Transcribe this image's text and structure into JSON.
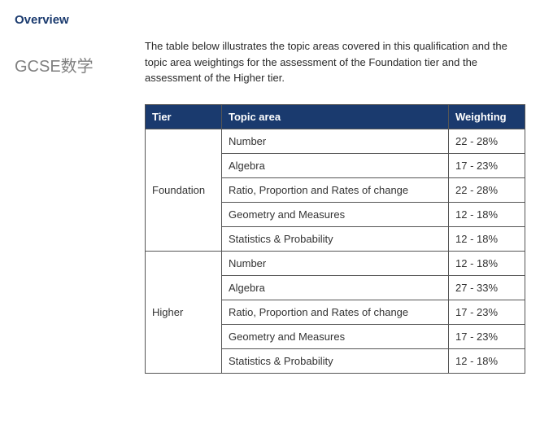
{
  "heading": "Overview",
  "side_label": "GCSE数学",
  "description": "The table below illustrates the topic areas covered in this qualification and the topic area weightings for the assessment of the Foundation tier and the assessment of the Higher tier.",
  "table": {
    "header_bg": "#1a3a6e",
    "header_text_color": "#ffffff",
    "border_color": "#555555",
    "col_tier_header": "Tier",
    "col_topic_header": "Topic area",
    "col_weight_header": "Weighting",
    "tiers": [
      {
        "name": "Foundation",
        "rows": [
          {
            "topic": "Number",
            "weight": "22 - 28%"
          },
          {
            "topic": "Algebra",
            "weight": "17 - 23%"
          },
          {
            "topic": "Ratio, Proportion and Rates of change",
            "weight": "22 - 28%"
          },
          {
            "topic": "Geometry and Measures",
            "weight": "12 - 18%"
          },
          {
            "topic": "Statistics & Probability",
            "weight": "12 - 18%"
          }
        ]
      },
      {
        "name": "Higher",
        "rows": [
          {
            "topic": "Number",
            "weight": "12 - 18%"
          },
          {
            "topic": "Algebra",
            "weight": "27 - 33%"
          },
          {
            "topic": "Ratio, Proportion and Rates of change",
            "weight": "17 - 23%"
          },
          {
            "topic": "Geometry and Measures",
            "weight": "17 - 23%"
          },
          {
            "topic": "Statistics & Probability",
            "weight": "12 - 18%"
          }
        ]
      }
    ]
  }
}
